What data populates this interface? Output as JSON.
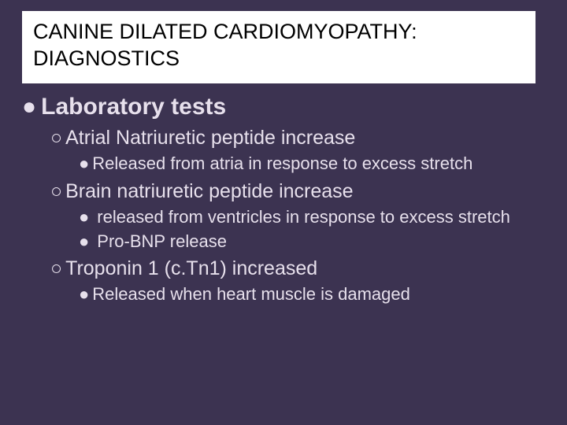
{
  "colors": {
    "background": "#3c3351",
    "title_box_bg": "#ffffff",
    "title_text": "#000000",
    "body_text": "#e7e0ec"
  },
  "typography": {
    "title_fontsize": 27,
    "l1_fontsize": 30,
    "l2_fontsize": 25,
    "l3_fontsize": 22,
    "font_family": "Arial"
  },
  "title": "CANINE DILATED CARDIOMYOPATHY: DIAGNOSTICS",
  "bullets": {
    "l1": {
      "marker": "●",
      "text": "Laboratory tests"
    },
    "l2a": {
      "marker": "○",
      "text": "Atrial Natriuretic peptide increase"
    },
    "l3a": {
      "marker": "●",
      "text": "Released from atria in response to excess stretch"
    },
    "l2b": {
      "marker": "○",
      "text": "Brain natriuretic peptide increase"
    },
    "l3b": {
      "marker": "●",
      "text": "released from ventricles in response to excess stretch"
    },
    "l3c": {
      "marker": "●",
      "text": "Pro-BNP release"
    },
    "l2c": {
      "marker": "○",
      "text": "Troponin 1 (c.Tn1) increased"
    },
    "l3d": {
      "marker": "●",
      "text": "Released when heart muscle is damaged"
    }
  }
}
